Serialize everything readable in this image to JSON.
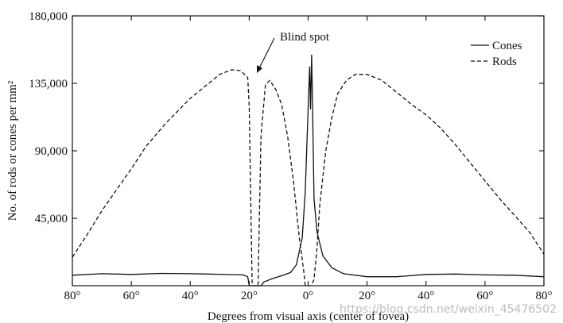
{
  "chart_data": {
    "type": "line",
    "xlabel": "Degrees from visual axis (center of fovea)",
    "ylabel": "No. of rods or cones per mm²",
    "xlim": [
      -80,
      80
    ],
    "ylim": [
      0,
      180000
    ],
    "x_ticks": [
      -80,
      -60,
      -40,
      -20,
      0,
      20,
      40,
      60,
      80
    ],
    "x_tick_labels": [
      "80°",
      "60°",
      "40°",
      "20°",
      "0°",
      "20°",
      "40°",
      "60°",
      "80°"
    ],
    "y_ticks": [
      45000,
      90000,
      135000,
      180000
    ],
    "y_tick_labels": [
      "45,000",
      "90,000",
      "135,000",
      "180,000"
    ],
    "legend": {
      "position": "top-right"
    },
    "annotation": {
      "text": "Blind spot",
      "x": -17,
      "y": 139000
    },
    "series": [
      {
        "name": "Cones",
        "style": "solid",
        "points": [
          [
            -80,
            7000
          ],
          [
            -70,
            8000
          ],
          [
            -60,
            7500
          ],
          [
            -50,
            8200
          ],
          [
            -40,
            8000
          ],
          [
            -30,
            7600
          ],
          [
            -22,
            7200
          ],
          [
            -20.5,
            6000
          ],
          [
            -20,
            0
          ],
          [
            -16,
            0
          ],
          [
            -15,
            2500
          ],
          [
            -12,
            4800
          ],
          [
            -9,
            6600
          ],
          [
            -6,
            8800
          ],
          [
            -4,
            14000
          ],
          [
            -2,
            32000
          ],
          [
            -1,
            62000
          ],
          [
            0,
            118000
          ],
          [
            0.5,
            146000
          ],
          [
            0.8,
            118000
          ],
          [
            1.2,
            154000
          ],
          [
            1.5,
            118000
          ],
          [
            2,
            58000
          ],
          [
            3,
            36000
          ],
          [
            5,
            20000
          ],
          [
            8,
            12000
          ],
          [
            12,
            8000
          ],
          [
            20,
            6000
          ],
          [
            30,
            6000
          ],
          [
            40,
            7500
          ],
          [
            50,
            7800
          ],
          [
            60,
            7200
          ],
          [
            70,
            7000
          ],
          [
            80,
            6000
          ]
        ]
      },
      {
        "name": "Rods",
        "style": "dashed",
        "points": [
          [
            -80,
            19000
          ],
          [
            -75,
            34000
          ],
          [
            -70,
            50000
          ],
          [
            -65,
            64000
          ],
          [
            -60,
            78000
          ],
          [
            -55,
            93000
          ],
          [
            -48,
            109000
          ],
          [
            -40,
            125000
          ],
          [
            -35,
            133000
          ],
          [
            -30,
            141000
          ],
          [
            -26,
            144000
          ],
          [
            -23,
            143500
          ],
          [
            -20.5,
            139000
          ],
          [
            -20,
            120000
          ],
          [
            -19,
            0
          ],
          [
            -17,
            0
          ],
          [
            -16,
            100000
          ],
          [
            -14.5,
            134000
          ],
          [
            -13,
            137000
          ],
          [
            -11,
            131000
          ],
          [
            -9,
            121000
          ],
          [
            -7,
            100000
          ],
          [
            -5,
            70000
          ],
          [
            -3,
            32000
          ],
          [
            -1.5,
            10000
          ],
          [
            -1,
            0
          ],
          [
            0,
            0
          ],
          [
            1,
            0
          ],
          [
            2,
            4000
          ],
          [
            3,
            25000
          ],
          [
            4,
            55000
          ],
          [
            6,
            90000
          ],
          [
            8,
            112000
          ],
          [
            10,
            128000
          ],
          [
            13,
            137000
          ],
          [
            16,
            141000
          ],
          [
            20,
            141000
          ],
          [
            25,
            137000
          ],
          [
            30,
            129000
          ],
          [
            35,
            121000
          ],
          [
            40,
            114000
          ],
          [
            45,
            105000
          ],
          [
            50,
            94000
          ],
          [
            55,
            82000
          ],
          [
            60,
            70000
          ],
          [
            65,
            58000
          ],
          [
            70,
            47000
          ],
          [
            75,
            36000
          ],
          [
            80,
            21000
          ]
        ]
      }
    ]
  },
  "watermark": "https://blog.csdn.net/weixin_45476502"
}
